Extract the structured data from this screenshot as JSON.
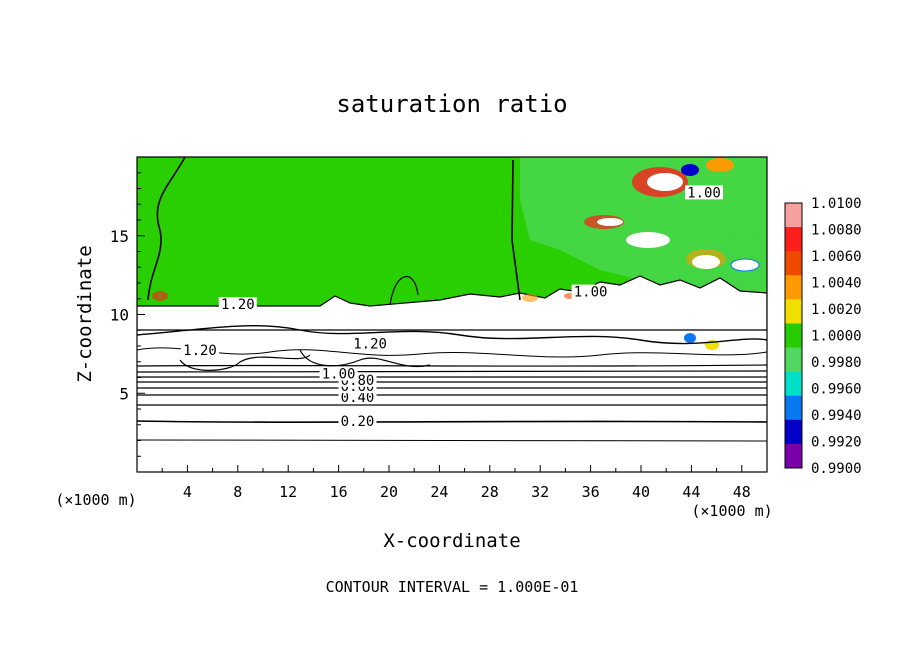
{
  "chart_data": {
    "type": "heatmap",
    "title": "saturation ratio",
    "xlabel": "X-coordinate",
    "ylabel": "Z-coordinate",
    "x_unit_label": "(×1000 m)",
    "y_unit_label": "(×1000 m)",
    "xlim": [
      0,
      50
    ],
    "ylim": [
      0,
      20
    ],
    "x_ticks": [
      "4",
      "8",
      "12",
      "16",
      "20",
      "24",
      "28",
      "32",
      "36",
      "40",
      "44",
      "48"
    ],
    "y_ticks": [
      "5",
      "10",
      "15"
    ],
    "footer": "CONTOUR INTERVAL = 1.000E-01",
    "colorbar": {
      "levels": [
        "1.0100",
        "1.0080",
        "1.0060",
        "1.0040",
        "1.0020",
        "1.0000",
        "0.9980",
        "0.9960",
        "0.9940",
        "0.9920",
        "0.9900"
      ],
      "colors": [
        "#f7a0a0",
        "#ff1e1e",
        "#f04a00",
        "#ff9a00",
        "#f0e000",
        "#26cc00",
        "#50d860",
        "#00e0c8",
        "#0a78f0",
        "#0000c8",
        "#7a00aa"
      ]
    },
    "contour_labels": [
      {
        "text": "0.20",
        "x": 17.5,
        "z": 3.0
      },
      {
        "text": "0.40",
        "x": 17.5,
        "z": 4.5
      },
      {
        "text": "0.60",
        "x": 17.5,
        "z": 5.2
      },
      {
        "text": "0.80",
        "x": 17.5,
        "z": 5.6
      },
      {
        "text": "1.00",
        "x": 16.0,
        "z": 6.0
      },
      {
        "text": "1.20",
        "x": 8.0,
        "z": 10.4
      },
      {
        "text": "1.20",
        "x": 5.0,
        "z": 7.5
      },
      {
        "text": "1.20",
        "x": 18.5,
        "z": 7.9
      },
      {
        "text": "1.00",
        "x": 36.0,
        "z": 11.2
      },
      {
        "text": "1.00",
        "x": 45.0,
        "z": 17.5
      }
    ],
    "regions": {
      "upper_saturation_value": 1.0,
      "layer_boundary_z": 10.6,
      "lower_cloud_top_z": 6.3
    },
    "grid": false,
    "legend_position": "right"
  }
}
